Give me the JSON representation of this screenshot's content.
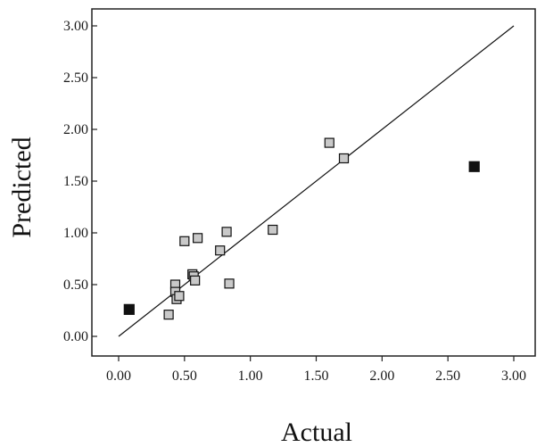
{
  "chart_data": {
    "type": "scatter",
    "title": "",
    "xlabel": "Actual",
    "ylabel": "Predicted",
    "xlim": [
      0,
      3
    ],
    "ylim": [
      0,
      3
    ],
    "x_ticks": [
      "0.00",
      "0.50",
      "1.00",
      "1.50",
      "2.00",
      "2.50",
      "3.00"
    ],
    "y_ticks": [
      "0.00",
      "0.50",
      "1.00",
      "1.50",
      "2.00",
      "2.50",
      "3.00"
    ],
    "grid": false,
    "legend": "none",
    "reference_line": {
      "from": [
        0,
        0
      ],
      "to": [
        3,
        3
      ]
    },
    "colors": {
      "hollow_fill": "#c9c9c9",
      "solid_fill": "#111111",
      "stroke": "#111111"
    },
    "series": [
      {
        "style": "hollow-square",
        "points": [
          [
            0.38,
            0.21
          ],
          [
            0.43,
            0.5
          ],
          [
            0.43,
            0.43
          ],
          [
            0.44,
            0.36
          ],
          [
            0.46,
            0.39
          ],
          [
            0.5,
            0.92
          ],
          [
            0.56,
            0.6
          ],
          [
            0.57,
            0.58
          ],
          [
            0.58,
            0.54
          ],
          [
            0.6,
            0.95
          ],
          [
            0.77,
            0.83
          ],
          [
            0.82,
            1.01
          ],
          [
            0.84,
            0.51
          ],
          [
            1.17,
            1.03
          ],
          [
            1.6,
            1.87
          ],
          [
            1.71,
            1.72
          ]
        ]
      },
      {
        "style": "solid-square",
        "points": [
          [
            0.08,
            0.26
          ],
          [
            2.7,
            1.64
          ]
        ]
      }
    ]
  }
}
